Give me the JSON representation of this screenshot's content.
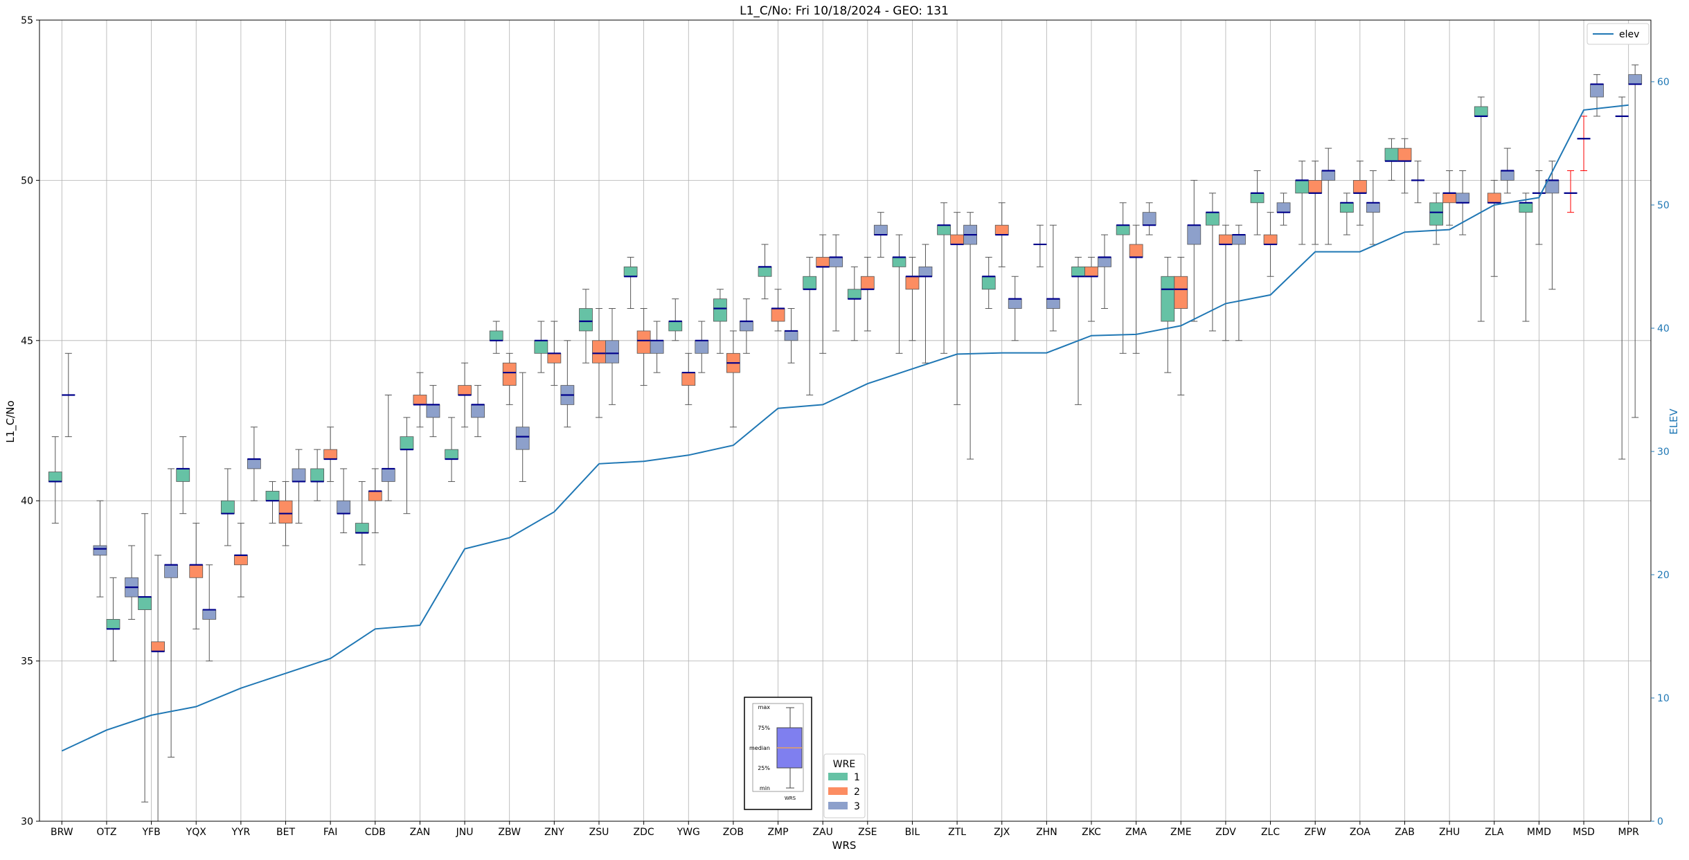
{
  "chart_data": {
    "type": "box",
    "title": "L1_C/No: Fri 10/18/2024 - GEO: 131",
    "xlabel": "WRS",
    "ylabel": "L1_C/No",
    "y2label": "ELEV",
    "ylim": [
      30,
      55
    ],
    "y2lim": [
      0,
      65
    ],
    "yticks": [
      30,
      35,
      40,
      45,
      50,
      55
    ],
    "y2ticks": [
      0,
      10,
      20,
      30,
      40,
      50,
      60
    ],
    "grid": true,
    "categories": [
      "BRW",
      "OTZ",
      "YFB",
      "YQX",
      "YYR",
      "BET",
      "FAI",
      "CDB",
      "ZAN",
      "JNU",
      "ZBW",
      "ZNY",
      "ZSU",
      "ZDC",
      "YWG",
      "ZOB",
      "ZMP",
      "ZAU",
      "ZSE",
      "BIL",
      "ZTL",
      "ZJX",
      "ZHN",
      "ZKC",
      "ZMA",
      "ZME",
      "ZDV",
      "ZLC",
      "ZFW",
      "ZOA",
      "ZAB",
      "ZHU",
      "ZLA",
      "MMD",
      "MSD",
      "MPR"
    ],
    "colors": {
      "1": "#66c2a5",
      "2": "#fc8d62",
      "3": "#8da0cb",
      "median": "#00008b",
      "elev": "#1f77b4",
      "whisker": "#555555",
      "single_whisker": "#ff0000"
    },
    "wre_legend": {
      "title": "WRE",
      "entries": [
        "1",
        "2",
        "3"
      ]
    },
    "elev_legend": "elev",
    "inset": {
      "labels": [
        "max",
        "75%",
        "median",
        "25%",
        "min"
      ],
      "xlabel": "WRS"
    },
    "elev": [
      5.7,
      7.4,
      8.6,
      9.3,
      10.8,
      12.0,
      13.2,
      15.6,
      15.9,
      22.1,
      23.0,
      25.1,
      29.0,
      29.2,
      29.7,
      30.5,
      33.5,
      33.8,
      35.5,
      36.7,
      37.9,
      38.0,
      38.0,
      39.4,
      39.5,
      40.2,
      42.0,
      42.7,
      46.2,
      46.2,
      47.8,
      48.0,
      50.0,
      50.6,
      57.7,
      58.1
    ],
    "boxes": [
      {
        "station": "BRW",
        "wre": 1,
        "min": 39.3,
        "q1": 40.6,
        "median": 40.6,
        "q3": 40.9,
        "max": 42.0
      },
      {
        "station": "BRW",
        "wre": 3,
        "min": 42.0,
        "q1": 43.3,
        "median": 43.3,
        "q3": 43.3,
        "max": 44.6
      },
      {
        "station": "OTZ",
        "wre": 3,
        "min": 37.0,
        "q1": 38.3,
        "median": 38.5,
        "q3": 38.6,
        "max": 40.0
      },
      {
        "station": "OTZ",
        "wre": 1,
        "min": 35.0,
        "q1": 36.0,
        "median": 36.0,
        "q3": 36.3,
        "max": 37.6
      },
      {
        "station": "YFB",
        "wre": 3,
        "min": 36.3,
        "q1": 37.0,
        "median": 37.3,
        "q3": 37.6,
        "max": 38.6
      },
      {
        "station": "YFB",
        "wre": 1,
        "min": 30.6,
        "q1": 36.6,
        "median": 37.0,
        "q3": 37.0,
        "max": 39.6
      },
      {
        "station": "YFB",
        "wre": 2,
        "min": 30.0,
        "q1": 35.3,
        "median": 35.3,
        "q3": 35.6,
        "max": 38.3
      },
      {
        "station": "YFB",
        "wre": 3,
        "min": 32.0,
        "q1": 37.6,
        "median": 38.0,
        "q3": 38.0,
        "max": 41.0
      },
      {
        "station": "YQX",
        "wre": 1,
        "min": 39.6,
        "q1": 40.6,
        "median": 41.0,
        "q3": 41.0,
        "max": 42.0
      },
      {
        "station": "YQX",
        "wre": 2,
        "min": 36.0,
        "q1": 37.6,
        "median": 38.0,
        "q3": 38.0,
        "max": 39.3
      },
      {
        "station": "YQX",
        "wre": 3,
        "min": 35.0,
        "q1": 36.3,
        "median": 36.6,
        "q3": 36.6,
        "max": 38.0
      },
      {
        "station": "YYR",
        "wre": 1,
        "min": 38.6,
        "q1": 39.6,
        "median": 39.6,
        "q3": 40.0,
        "max": 41.0
      },
      {
        "station": "YYR",
        "wre": 2,
        "min": 37.0,
        "q1": 38.0,
        "median": 38.3,
        "q3": 38.3,
        "max": 39.3
      },
      {
        "station": "YYR",
        "wre": 3,
        "min": 40.0,
        "q1": 41.0,
        "median": 41.3,
        "q3": 41.3,
        "max": 42.3
      },
      {
        "station": "BET",
        "wre": 1,
        "min": 39.3,
        "q1": 40.0,
        "median": 40.0,
        "q3": 40.3,
        "max": 40.6
      },
      {
        "station": "BET",
        "wre": 2,
        "min": 38.6,
        "q1": 39.3,
        "median": 39.6,
        "q3": 40.0,
        "max": 40.6
      },
      {
        "station": "BET",
        "wre": 3,
        "min": 39.3,
        "q1": 40.6,
        "median": 40.6,
        "q3": 41.0,
        "max": 41.6
      },
      {
        "station": "FAI",
        "wre": 1,
        "min": 40.0,
        "q1": 40.6,
        "median": 40.6,
        "q3": 41.0,
        "max": 41.6
      },
      {
        "station": "FAI",
        "wre": 2,
        "min": 40.6,
        "q1": 41.3,
        "median": 41.3,
        "q3": 41.6,
        "max": 42.3
      },
      {
        "station": "FAI",
        "wre": 3,
        "min": 39.0,
        "q1": 39.6,
        "median": 39.6,
        "q3": 40.0,
        "max": 41.0
      },
      {
        "station": "CDB",
        "wre": 1,
        "min": 38.0,
        "q1": 39.0,
        "median": 39.0,
        "q3": 39.3,
        "max": 40.6
      },
      {
        "station": "CDB",
        "wre": 2,
        "min": 39.0,
        "q1": 40.0,
        "median": 40.3,
        "q3": 40.3,
        "max": 41.0
      },
      {
        "station": "CDB",
        "wre": 3,
        "min": 40.0,
        "q1": 40.6,
        "median": 41.0,
        "q3": 41.0,
        "max": 43.3
      },
      {
        "station": "ZAN",
        "wre": 1,
        "min": 39.6,
        "q1": 41.6,
        "median": 41.6,
        "q3": 42.0,
        "max": 42.6
      },
      {
        "station": "ZAN",
        "wre": 2,
        "min": 42.3,
        "q1": 43.0,
        "median": 43.0,
        "q3": 43.3,
        "max": 44.0
      },
      {
        "station": "ZAN",
        "wre": 3,
        "min": 42.0,
        "q1": 42.6,
        "median": 43.0,
        "q3": 43.0,
        "max": 43.6
      },
      {
        "station": "JNU",
        "wre": 1,
        "min": 40.6,
        "q1": 41.3,
        "median": 41.3,
        "q3": 41.6,
        "max": 42.6
      },
      {
        "station": "JNU",
        "wre": 2,
        "min": 42.3,
        "q1": 43.3,
        "median": 43.3,
        "q3": 43.6,
        "max": 44.3
      },
      {
        "station": "JNU",
        "wre": 3,
        "min": 42.0,
        "q1": 42.6,
        "median": 43.0,
        "q3": 43.0,
        "max": 43.6
      },
      {
        "station": "ZBW",
        "wre": 1,
        "min": 44.6,
        "q1": 45.0,
        "median": 45.0,
        "q3": 45.3,
        "max": 45.6
      },
      {
        "station": "ZBW",
        "wre": 2,
        "min": 43.0,
        "q1": 43.6,
        "median": 44.0,
        "q3": 44.3,
        "max": 44.6
      },
      {
        "station": "ZBW",
        "wre": 3,
        "min": 40.6,
        "q1": 41.6,
        "median": 42.0,
        "q3": 42.3,
        "max": 44.0
      },
      {
        "station": "ZNY",
        "wre": 1,
        "min": 44.0,
        "q1": 44.6,
        "median": 45.0,
        "q3": 45.0,
        "max": 45.6
      },
      {
        "station": "ZNY",
        "wre": 2,
        "min": 43.6,
        "q1": 44.3,
        "median": 44.6,
        "q3": 44.6,
        "max": 45.6
      },
      {
        "station": "ZNY",
        "wre": 3,
        "min": 42.3,
        "q1": 43.0,
        "median": 43.3,
        "q3": 43.6,
        "max": 45.0
      },
      {
        "station": "ZSU",
        "wre": 1,
        "min": 44.3,
        "q1": 45.3,
        "median": 45.6,
        "q3": 46.0,
        "max": 46.6
      },
      {
        "station": "ZSU",
        "wre": 2,
        "min": 42.6,
        "q1": 44.3,
        "median": 44.6,
        "q3": 45.0,
        "max": 46.0
      },
      {
        "station": "ZSU",
        "wre": 3,
        "min": 43.0,
        "q1": 44.3,
        "median": 44.6,
        "q3": 45.0,
        "max": 46.0
      },
      {
        "station": "ZDC",
        "wre": 1,
        "min": 46.0,
        "q1": 47.0,
        "median": 47.0,
        "q3": 47.3,
        "max": 47.6
      },
      {
        "station": "ZDC",
        "wre": 2,
        "min": 43.6,
        "q1": 44.6,
        "median": 45.0,
        "q3": 45.3,
        "max": 46.0
      },
      {
        "station": "ZDC",
        "wre": 3,
        "min": 44.0,
        "q1": 44.6,
        "median": 45.0,
        "q3": 45.0,
        "max": 45.6
      },
      {
        "station": "YWG",
        "wre": 1,
        "min": 45.0,
        "q1": 45.3,
        "median": 45.6,
        "q3": 45.6,
        "max": 46.3
      },
      {
        "station": "YWG",
        "wre": 2,
        "min": 43.0,
        "q1": 43.6,
        "median": 44.0,
        "q3": 44.0,
        "max": 44.6
      },
      {
        "station": "YWG",
        "wre": 3,
        "min": 44.0,
        "q1": 44.6,
        "median": 45.0,
        "q3": 45.0,
        "max": 45.6
      },
      {
        "station": "ZOB",
        "wre": 1,
        "min": 44.6,
        "q1": 45.6,
        "median": 46.0,
        "q3": 46.3,
        "max": 46.6
      },
      {
        "station": "ZOB",
        "wre": 2,
        "min": 42.3,
        "q1": 44.0,
        "median": 44.3,
        "q3": 44.6,
        "max": 45.3
      },
      {
        "station": "ZOB",
        "wre": 3,
        "min": 44.6,
        "q1": 45.3,
        "median": 45.6,
        "q3": 45.6,
        "max": 46.3
      },
      {
        "station": "ZMP",
        "wre": 1,
        "min": 46.3,
        "q1": 47.0,
        "median": 47.3,
        "q3": 47.3,
        "max": 48.0
      },
      {
        "station": "ZMP",
        "wre": 2,
        "min": 45.3,
        "q1": 45.6,
        "median": 46.0,
        "q3": 46.0,
        "max": 46.6
      },
      {
        "station": "ZMP",
        "wre": 3,
        "min": 44.3,
        "q1": 45.0,
        "median": 45.3,
        "q3": 45.3,
        "max": 46.0
      },
      {
        "station": "ZAU",
        "wre": 1,
        "min": 43.3,
        "q1": 46.6,
        "median": 46.6,
        "q3": 47.0,
        "max": 47.6
      },
      {
        "station": "ZAU",
        "wre": 2,
        "min": 44.6,
        "q1": 47.3,
        "median": 47.3,
        "q3": 47.6,
        "max": 48.3
      },
      {
        "station": "ZAU",
        "wre": 3,
        "min": 45.3,
        "q1": 47.3,
        "median": 47.6,
        "q3": 47.6,
        "max": 48.3
      },
      {
        "station": "ZSE",
        "wre": 1,
        "min": 45.0,
        "q1": 46.3,
        "median": 46.3,
        "q3": 46.6,
        "max": 47.3
      },
      {
        "station": "ZSE",
        "wre": 2,
        "min": 45.3,
        "q1": 46.6,
        "median": 46.6,
        "q3": 47.0,
        "max": 47.6
      },
      {
        "station": "ZSE",
        "wre": 3,
        "min": 47.6,
        "q1": 48.3,
        "median": 48.3,
        "q3": 48.6,
        "max": 49.0
      },
      {
        "station": "BIL",
        "wre": 1,
        "min": 44.6,
        "q1": 47.3,
        "median": 47.6,
        "q3": 47.6,
        "max": 48.3
      },
      {
        "station": "BIL",
        "wre": 2,
        "min": 45.0,
        "q1": 46.6,
        "median": 47.0,
        "q3": 47.0,
        "max": 47.6
      },
      {
        "station": "BIL",
        "wre": 3,
        "min": 44.3,
        "q1": 47.0,
        "median": 47.0,
        "q3": 47.3,
        "max": 48.0
      },
      {
        "station": "ZTL",
        "wre": 1,
        "min": 44.6,
        "q1": 48.3,
        "median": 48.6,
        "q3": 48.6,
        "max": 49.3
      },
      {
        "station": "ZTL",
        "wre": 2,
        "min": 43.0,
        "q1": 48.0,
        "median": 48.0,
        "q3": 48.3,
        "max": 49.0
      },
      {
        "station": "ZTL",
        "wre": 3,
        "min": 41.3,
        "q1": 48.0,
        "median": 48.3,
        "q3": 48.6,
        "max": 49.0
      },
      {
        "station": "ZJX",
        "wre": 1,
        "min": 46.0,
        "q1": 46.6,
        "median": 47.0,
        "q3": 47.0,
        "max": 47.6
      },
      {
        "station": "ZJX",
        "wre": 2,
        "min": 47.3,
        "q1": 48.3,
        "median": 48.3,
        "q3": 48.6,
        "max": 49.3
      },
      {
        "station": "ZJX",
        "wre": 3,
        "min": 45.0,
        "q1": 46.0,
        "median": 46.3,
        "q3": 46.3,
        "max": 47.0
      },
      {
        "station": "ZHN",
        "wre": 3,
        "min": 47.3,
        "q1": 48.0,
        "median": 48.0,
        "q3": 48.0,
        "max": 48.6
      },
      {
        "station": "ZHN",
        "wre": 3,
        "min": 45.3,
        "q1": 46.0,
        "median": 46.3,
        "q3": 46.3,
        "max": 48.6
      },
      {
        "station": "ZKC",
        "wre": 1,
        "min": 43.0,
        "q1": 47.0,
        "median": 47.0,
        "q3": 47.3,
        "max": 47.6
      },
      {
        "station": "ZKC",
        "wre": 2,
        "min": 45.6,
        "q1": 47.0,
        "median": 47.0,
        "q3": 47.3,
        "max": 47.6
      },
      {
        "station": "ZKC",
        "wre": 3,
        "min": 46.0,
        "q1": 47.3,
        "median": 47.6,
        "q3": 47.6,
        "max": 48.3
      },
      {
        "station": "ZMA",
        "wre": 1,
        "min": 44.6,
        "q1": 48.3,
        "median": 48.6,
        "q3": 48.6,
        "max": 49.3
      },
      {
        "station": "ZMA",
        "wre": 2,
        "min": 44.6,
        "q1": 47.6,
        "median": 47.6,
        "q3": 48.0,
        "max": 48.6
      },
      {
        "station": "ZMA",
        "wre": 3,
        "min": 48.3,
        "q1": 48.6,
        "median": 48.6,
        "q3": 49.0,
        "max": 49.3
      },
      {
        "station": "ZME",
        "wre": 1,
        "min": 44.0,
        "q1": 45.6,
        "median": 46.6,
        "q3": 47.0,
        "max": 47.6
      },
      {
        "station": "ZME",
        "wre": 2,
        "min": 43.3,
        "q1": 46.0,
        "median": 46.6,
        "q3": 47.0,
        "max": 47.6
      },
      {
        "station": "ZME",
        "wre": 3,
        "min": 45.6,
        "q1": 48.0,
        "median": 48.6,
        "q3": 48.6,
        "max": 50.0
      },
      {
        "station": "ZDV",
        "wre": 1,
        "min": 45.3,
        "q1": 48.6,
        "median": 49.0,
        "q3": 49.0,
        "max": 49.6
      },
      {
        "station": "ZDV",
        "wre": 2,
        "min": 45.0,
        "q1": 48.0,
        "median": 48.0,
        "q3": 48.3,
        "max": 48.6
      },
      {
        "station": "ZDV",
        "wre": 3,
        "min": 45.0,
        "q1": 48.0,
        "median": 48.3,
        "q3": 48.3,
        "max": 48.6
      },
      {
        "station": "ZLC",
        "wre": 1,
        "min": 48.3,
        "q1": 49.3,
        "median": 49.6,
        "q3": 49.6,
        "max": 50.3
      },
      {
        "station": "ZLC",
        "wre": 2,
        "min": 47.0,
        "q1": 48.0,
        "median": 48.0,
        "q3": 48.3,
        "max": 49.0
      },
      {
        "station": "ZLC",
        "wre": 3,
        "min": 48.6,
        "q1": 49.0,
        "median": 49.0,
        "q3": 49.3,
        "max": 49.6
      },
      {
        "station": "ZFW",
        "wre": 1,
        "min": 48.0,
        "q1": 49.6,
        "median": 50.0,
        "q3": 50.0,
        "max": 50.6
      },
      {
        "station": "ZFW",
        "wre": 2,
        "min": 48.0,
        "q1": 49.6,
        "median": 49.6,
        "q3": 50.0,
        "max": 50.6
      },
      {
        "station": "ZFW",
        "wre": 3,
        "min": 48.0,
        "q1": 50.0,
        "median": 50.3,
        "q3": 50.3,
        "max": 51.0
      },
      {
        "station": "ZOA",
        "wre": 1,
        "min": 48.3,
        "q1": 49.0,
        "median": 49.3,
        "q3": 49.3,
        "max": 49.6
      },
      {
        "station": "ZOA",
        "wre": 2,
        "min": 48.6,
        "q1": 49.6,
        "median": 49.6,
        "q3": 50.0,
        "max": 50.6
      },
      {
        "station": "ZOA",
        "wre": 3,
        "min": 48.0,
        "q1": 49.0,
        "median": 49.3,
        "q3": 49.3,
        "max": 50.3
      },
      {
        "station": "ZAB",
        "wre": 1,
        "min": 50.0,
        "q1": 50.6,
        "median": 50.6,
        "q3": 51.0,
        "max": 51.3
      },
      {
        "station": "ZAB",
        "wre": 2,
        "min": 49.6,
        "q1": 50.6,
        "median": 50.6,
        "q3": 51.0,
        "max": 51.3
      },
      {
        "station": "ZAB",
        "wre": 3,
        "min": 49.3,
        "q1": 50.0,
        "median": 50.0,
        "q3": 50.0,
        "max": 50.6
      },
      {
        "station": "ZHU",
        "wre": 1,
        "min": 48.0,
        "q1": 48.6,
        "median": 49.0,
        "q3": 49.3,
        "max": 49.6
      },
      {
        "station": "ZHU",
        "wre": 2,
        "min": 48.6,
        "q1": 49.3,
        "median": 49.6,
        "q3": 49.6,
        "max": 50.3
      },
      {
        "station": "ZHU",
        "wre": 3,
        "min": 48.3,
        "q1": 49.3,
        "median": 49.3,
        "q3": 49.6,
        "max": 50.3
      },
      {
        "station": "ZLA",
        "wre": 1,
        "min": 45.6,
        "q1": 52.0,
        "median": 52.0,
        "q3": 52.3,
        "max": 52.6
      },
      {
        "station": "ZLA",
        "wre": 2,
        "min": 47.0,
        "q1": 49.3,
        "median": 49.3,
        "q3": 49.6,
        "max": 50.0
      },
      {
        "station": "ZLA",
        "wre": 3,
        "min": 49.6,
        "q1": 50.0,
        "median": 50.3,
        "q3": 50.3,
        "max": 51.0
      },
      {
        "station": "MMD",
        "wre": 1,
        "min": 45.6,
        "q1": 49.0,
        "median": 49.3,
        "q3": 49.3,
        "max": 49.6
      },
      {
        "station": "MMD",
        "wre": 3,
        "min": 48.0,
        "q1": 49.6,
        "median": 49.6,
        "q3": 49.6,
        "max": 50.3
      },
      {
        "station": "MMD",
        "wre": 3,
        "min": 46.6,
        "q1": 49.6,
        "median": 50.0,
        "q3": 50.0,
        "max": 50.6
      },
      {
        "station": "MSD",
        "wre": 2,
        "min": 49.0,
        "q1": 49.6,
        "median": 49.6,
        "q3": 49.6,
        "max": 50.3,
        "red": true
      },
      {
        "station": "MSD",
        "wre": 2,
        "min": 50.3,
        "q1": 51.3,
        "median": 51.3,
        "q3": 51.3,
        "max": 52.0,
        "red": true
      },
      {
        "station": "MSD",
        "wre": 3,
        "min": 52.0,
        "q1": 52.6,
        "median": 53.0,
        "q3": 53.0,
        "max": 53.3
      },
      {
        "station": "MPR",
        "wre": 3,
        "min": 41.3,
        "q1": 52.0,
        "median": 52.0,
        "q3": 52.0,
        "max": 52.6
      },
      {
        "station": "MPR",
        "wre": 3,
        "min": 42.6,
        "q1": 53.0,
        "median": 53.0,
        "q3": 53.3,
        "max": 53.6
      }
    ]
  }
}
